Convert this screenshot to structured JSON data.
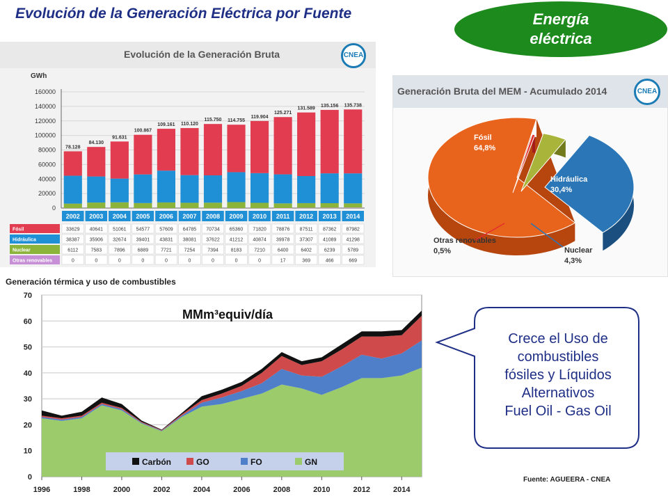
{
  "slide": {
    "title": "Evolución de la Generación Eléctrica por Fuente",
    "badge_line1": "Energía",
    "badge_line2": "eléctrica",
    "callout_lines": [
      "Crece el Uso de",
      "combustibles",
      "fósiles y Líquidos",
      "Alternativos",
      "Fuel Oil  - Gas Oil"
    ],
    "source": "Fuente: AGUEERA - CNEA",
    "logo_text": "CNEA"
  },
  "chart_data": [
    {
      "type": "bar",
      "title": "Evolución de la Generación Bruta",
      "ylabel": "GWh",
      "ylim": [
        0,
        160000
      ],
      "yticks": [
        "160000",
        "140000",
        "120000",
        "100000",
        "80000",
        "60000",
        "40000",
        "20000",
        "0"
      ],
      "categories": [
        "2002",
        "2003",
        "2004",
        "2005",
        "2006",
        "2007",
        "2008",
        "2009",
        "2010",
        "2011",
        "2012",
        "2013",
        "2014"
      ],
      "totals": [
        "78.128",
        "84.130",
        "91.631",
        "100.867",
        "109.161",
        "110.120",
        "115.750",
        "114.755",
        "119.904",
        "125.271",
        "131.589",
        "135.156",
        "135.738"
      ],
      "series": [
        {
          "name": "Otras renovables",
          "color": "#c78fd6",
          "values": [
            0,
            0,
            0,
            0,
            0,
            0,
            0,
            0,
            0,
            17,
            369,
            466,
            669
          ]
        },
        {
          "name": "Nuclear",
          "color": "#8db43a",
          "values": [
            6112,
            7583,
            7896,
            6889,
            7721,
            7254,
            7394,
            8183,
            7210,
            6400,
            6402,
            6239,
            5789
          ]
        },
        {
          "name": "Hidráulica",
          "color": "#1f8fd6",
          "values": [
            38387,
            35906,
            32674,
            39401,
            43831,
            38081,
            37622,
            41212,
            40874,
            39978,
            37307,
            41089,
            41298
          ]
        },
        {
          "name": "Fósil",
          "color": "#e13c50",
          "values": [
            33629,
            40641,
            51061,
            54577,
            57609,
            64785,
            70734,
            65360,
            71820,
            78876,
            87511,
            87362,
            87982
          ]
        }
      ]
    },
    {
      "type": "pie",
      "title": "Generación Bruta del MEM - Acumulado 2014",
      "slices": [
        {
          "name": "Fósil",
          "value": 64.8,
          "label": "64,8%",
          "color": "#e8641d"
        },
        {
          "name": "Hidráulica",
          "value": 30.4,
          "label": "30,4%",
          "color": "#2b76b6"
        },
        {
          "name": "Nuclear",
          "value": 4.3,
          "label": "4,3%",
          "color": "#a9b53a"
        },
        {
          "name": "Otras renovables",
          "value": 0.5,
          "label": "0,5%",
          "color": "#e42d2d"
        }
      ]
    },
    {
      "type": "area",
      "title": "Generación térmica y uso de combustibles",
      "unit_label": "MMm³equiv/día",
      "x": [
        1996,
        1997,
        1998,
        1999,
        2000,
        2001,
        2002,
        2003,
        2004,
        2005,
        2006,
        2007,
        2008,
        2009,
        2010,
        2011,
        2012,
        2013,
        2014,
        2015
      ],
      "xticks": [
        "1996",
        "1998",
        "2000",
        "2002",
        "2004",
        "2006",
        "2008",
        "2010",
        "2012",
        "2014"
      ],
      "ylim": [
        0,
        70
      ],
      "yticks": [
        "70",
        "60",
        "50",
        "40",
        "30",
        "20",
        "10",
        "0"
      ],
      "legend": "bottom",
      "series": [
        {
          "name": "GN",
          "color": "#9ccb6b",
          "values": [
            22.5,
            21.5,
            22.5,
            27.5,
            25.5,
            20.5,
            17.5,
            23,
            27,
            28,
            30,
            32,
            35.5,
            34,
            31.5,
            34.5,
            38,
            38,
            39,
            42
          ]
        },
        {
          "name": "FO",
          "color": "#4f7fc9",
          "values": [
            0.5,
            0.5,
            0.5,
            0.5,
            0.5,
            0.3,
            0.2,
            0.5,
            1.5,
            2.5,
            3,
            4,
            6,
            5,
            7,
            8,
            9,
            7.5,
            8.5,
            10.5
          ]
        },
        {
          "name": "GO",
          "color": "#cf4a4a",
          "values": [
            0.5,
            0.5,
            0.5,
            0.5,
            0.5,
            0.3,
            0.2,
            0.5,
            1,
            1.5,
            2,
            4,
            5,
            4,
            6,
            6.5,
            7,
            8.5,
            7,
            9.5
          ]
        },
        {
          "name": "Carbón",
          "color": "#111111",
          "values": [
            2,
            1,
            1.5,
            2,
            1.5,
            0.5,
            0.2,
            0.5,
            1.5,
            1.5,
            1.5,
            1.5,
            1.5,
            1.5,
            1.5,
            2,
            2,
            2,
            2,
            2
          ]
        }
      ]
    }
  ]
}
